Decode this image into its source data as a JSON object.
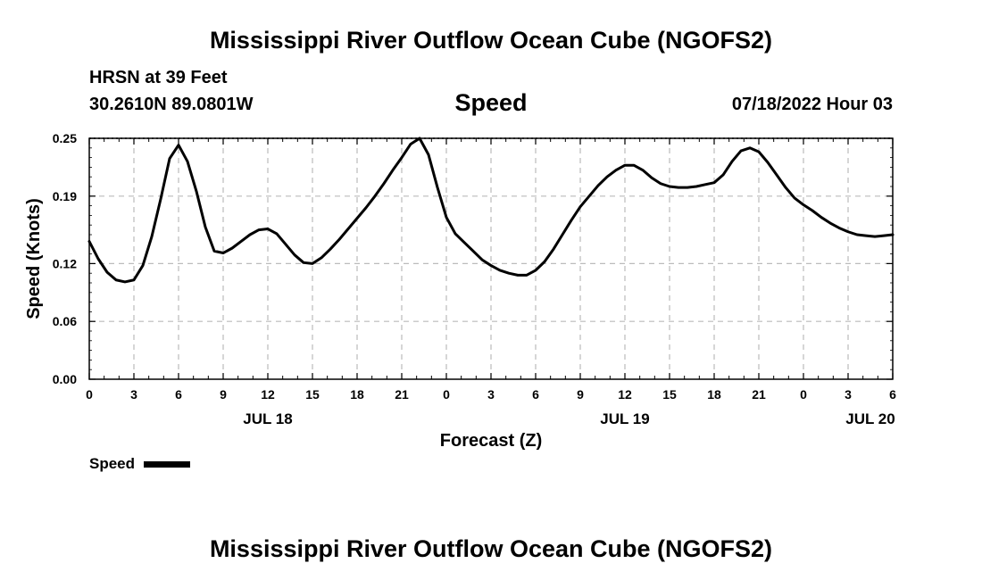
{
  "header": {
    "title": "Mississippi River Outflow Ocean Cube (NGOFS2)",
    "station": "HRSN at 39 Feet",
    "coords": "30.2610N  89.0801W",
    "chart_title": "Speed",
    "timestamp": "07/18/2022 Hour 03"
  },
  "footer": {
    "title": "Mississippi River Outflow Ocean Cube (NGOFS2)"
  },
  "chart_data": {
    "type": "line",
    "title": "Speed",
    "xlabel": "Forecast (Z)",
    "ylabel": "Speed (Knots)",
    "xlim": [
      0,
      54
    ],
    "ylim": [
      0.0,
      0.25
    ],
    "yticks": [
      0.0,
      0.06,
      0.12,
      0.19,
      0.25
    ],
    "ytick_labels": [
      "0.00",
      "0.06",
      "0.12",
      "0.19",
      "0.25"
    ],
    "xticks": [
      0,
      3,
      6,
      9,
      12,
      15,
      18,
      21,
      24,
      27,
      30,
      33,
      36,
      39,
      42,
      45,
      48,
      51,
      54
    ],
    "xtick_labels": [
      "0",
      "3",
      "6",
      "9",
      "12",
      "15",
      "18",
      "21",
      "0",
      "3",
      "6",
      "9",
      "12",
      "15",
      "18",
      "21",
      "0",
      "3",
      "6"
    ],
    "date_labels": [
      {
        "x": 12,
        "label": "JUL 18"
      },
      {
        "x": 36,
        "label": "JUL 19"
      },
      {
        "x": 52.5,
        "label": "JUL 20"
      }
    ],
    "grid": true,
    "legend": {
      "label": "Speed",
      "placement": "bottom-left"
    },
    "series": [
      {
        "name": "Speed",
        "x": [
          0,
          0.6,
          1.2,
          1.8,
          2.4,
          3.0,
          3.6,
          4.2,
          4.8,
          5.4,
          6.0,
          6.6,
          7.2,
          7.8,
          8.4,
          9.0,
          9.6,
          10.2,
          10.8,
          11.4,
          12.0,
          12.6,
          13.2,
          13.8,
          14.4,
          15.0,
          15.6,
          16.2,
          16.8,
          17.4,
          18.0,
          18.6,
          19.2,
          19.8,
          20.4,
          21.0,
          21.6,
          22.2,
          22.8,
          23.4,
          24.0,
          24.6,
          25.2,
          25.8,
          26.4,
          27.0,
          27.6,
          28.2,
          28.8,
          29.4,
          30.0,
          30.6,
          31.2,
          31.8,
          32.4,
          33.0,
          33.6,
          34.2,
          34.8,
          35.4,
          36.0,
          36.6,
          37.2,
          37.8,
          38.4,
          39.0,
          39.6,
          40.2,
          40.8,
          41.4,
          42.0,
          42.6,
          43.2,
          43.8,
          44.4,
          45.0,
          45.6,
          46.2,
          46.8,
          47.4,
          48.0,
          48.6,
          49.2,
          49.8,
          50.4,
          51.0,
          51.6,
          52.2,
          52.8,
          53.4,
          54.0
        ],
        "values": [
          0.143,
          0.125,
          0.111,
          0.103,
          0.101,
          0.103,
          0.118,
          0.148,
          0.187,
          0.229,
          0.243,
          0.226,
          0.195,
          0.158,
          0.133,
          0.131,
          0.136,
          0.143,
          0.15,
          0.155,
          0.156,
          0.151,
          0.14,
          0.129,
          0.121,
          0.12,
          0.126,
          0.135,
          0.145,
          0.156,
          0.167,
          0.178,
          0.19,
          0.203,
          0.217,
          0.23,
          0.244,
          0.25,
          0.233,
          0.199,
          0.168,
          0.151,
          0.142,
          0.133,
          0.124,
          0.118,
          0.113,
          0.11,
          0.108,
          0.108,
          0.113,
          0.122,
          0.135,
          0.15,
          0.165,
          0.179,
          0.19,
          0.201,
          0.21,
          0.217,
          0.222,
          0.222,
          0.217,
          0.209,
          0.203,
          0.2,
          0.199,
          0.199,
          0.2,
          0.202,
          0.204,
          0.212,
          0.226,
          0.237,
          0.24,
          0.236,
          0.225,
          0.212,
          0.199,
          0.188,
          0.181,
          0.175,
          0.168,
          0.162,
          0.157,
          0.153,
          0.15,
          0.149,
          0.148,
          0.149,
          0.15
        ]
      }
    ]
  }
}
